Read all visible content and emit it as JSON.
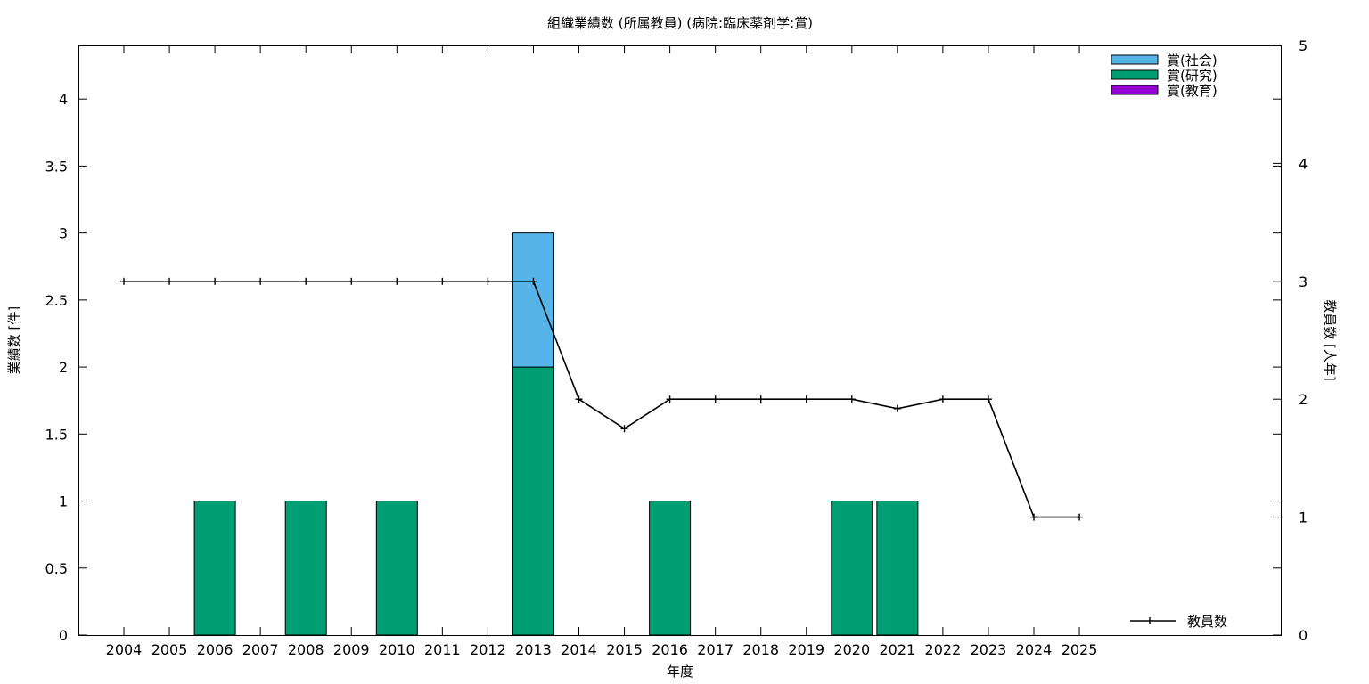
{
  "chart_data": {
    "type": "bar",
    "title": "組織業績数 (所属教員) (病院:臨床薬剤学:賞)",
    "xlabel": "年度",
    "ylabel": "業績数 [件]",
    "y2label": "教員数 [人年]",
    "categories": [
      "2004",
      "2005",
      "2006",
      "2007",
      "2008",
      "2009",
      "2010",
      "2011",
      "2012",
      "2013",
      "2014",
      "2015",
      "2016",
      "2017",
      "2018",
      "2019",
      "2020",
      "2021",
      "2022",
      "2023",
      "2024",
      "2025"
    ],
    "ylim": [
      0,
      4.4
    ],
    "yticks": [
      "0",
      "0.5",
      "1",
      "1.5",
      "2",
      "2.5",
      "3",
      "3.5",
      "4"
    ],
    "y2lim": [
      0,
      5
    ],
    "y2ticks": [
      "0",
      "1",
      "2",
      "3",
      "4",
      "5"
    ],
    "stacked": true,
    "series": [
      {
        "name": "賞(研究)",
        "kind": "bar",
        "axis": "left",
        "color": "#009e73",
        "values": [
          0,
          0,
          1,
          0,
          1,
          0,
          1,
          0,
          0,
          2,
          0,
          0,
          1,
          0,
          0,
          0,
          1,
          1,
          0,
          0,
          0,
          0
        ]
      },
      {
        "name": "賞(社会)",
        "kind": "bar",
        "axis": "left",
        "color": "#56b4e9",
        "values": [
          0,
          0,
          0,
          0,
          0,
          0,
          0,
          0,
          0,
          1,
          0,
          0,
          0,
          0,
          0,
          0,
          0,
          0,
          0,
          0,
          0,
          0
        ]
      },
      {
        "name": "賞(教育)",
        "kind": "bar",
        "axis": "left",
        "color": "#9400d3",
        "values": [
          0,
          0,
          0,
          0,
          0,
          0,
          0,
          0,
          0,
          0,
          0,
          0,
          0,
          0,
          0,
          0,
          0,
          0,
          0,
          0,
          0,
          0
        ]
      },
      {
        "name": "教員数",
        "kind": "line",
        "axis": "right",
        "color": "#000000",
        "values": [
          3,
          3,
          3,
          3,
          3,
          3,
          3,
          3,
          3,
          3,
          2,
          1.75,
          2,
          2,
          2,
          2,
          2,
          1.92,
          2,
          2,
          1,
          1
        ]
      }
    ],
    "legend": {
      "placement": "top-right",
      "items": [
        {
          "name": "賞(社会)",
          "color": "#56b4e9"
        },
        {
          "name": "賞(研究)",
          "color": "#009e73"
        },
        {
          "name": "賞(教育)",
          "color": "#9400d3"
        }
      ],
      "line_item": {
        "name": "教員数",
        "placement": "bottom-right"
      }
    },
    "grid": false
  }
}
